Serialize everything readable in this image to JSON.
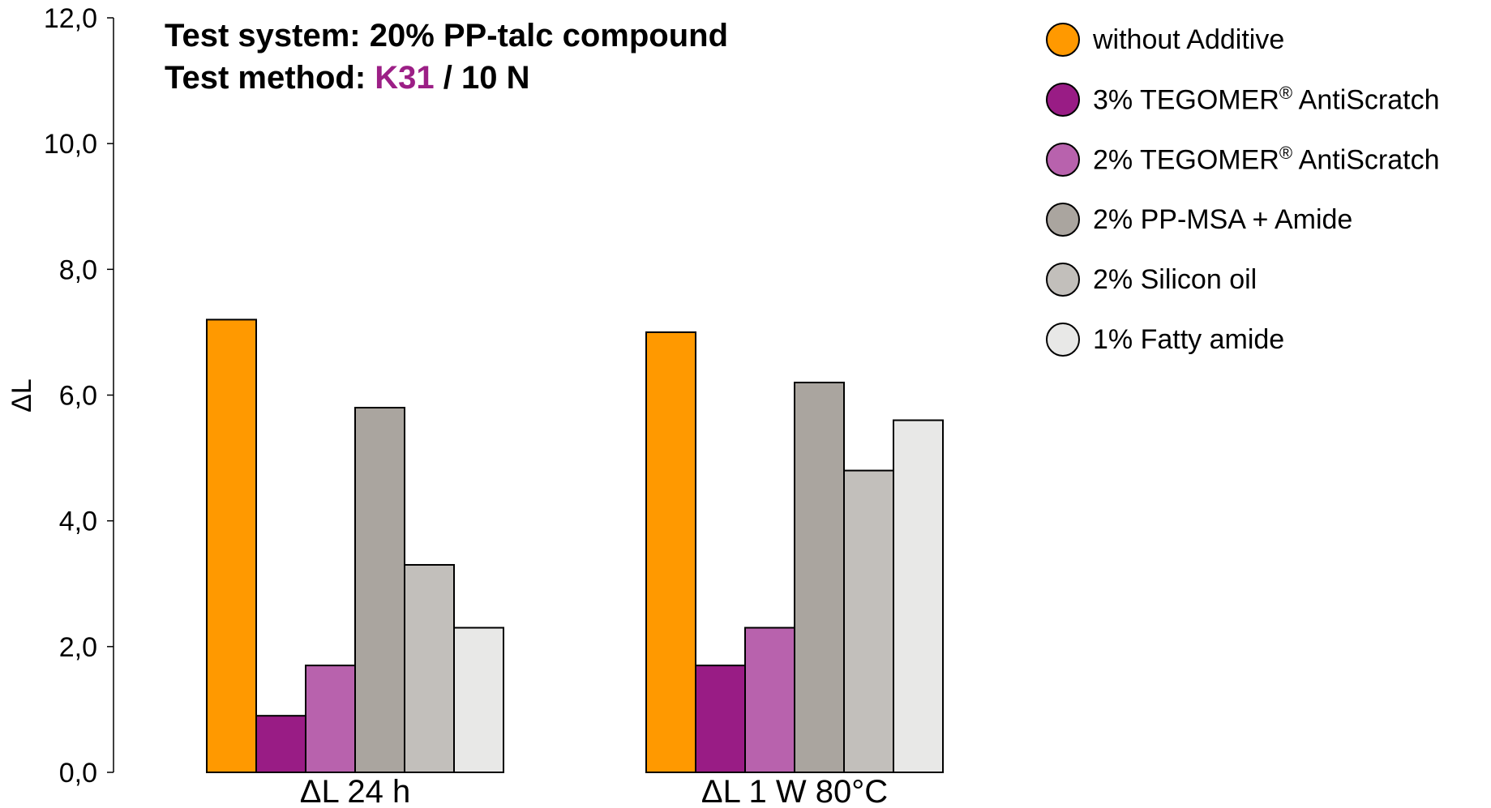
{
  "title": {
    "line1": "Test system: 20% PP-talc compound",
    "line2_prefix": "Test method: ",
    "line2_accent": "K31",
    "line2_suffix": " / 10 N"
  },
  "colors": {
    "accent": "#9c1f86",
    "axis": "#000000"
  },
  "chart_data": {
    "type": "bar",
    "title": "",
    "xlabel": "",
    "ylabel": "ΔL",
    "ylim": [
      0,
      12
    ],
    "yticks": [
      "0,0",
      "2,0",
      "4,0",
      "6,0",
      "8,0",
      "10,0",
      "12,0"
    ],
    "ytick_values": [
      0,
      2,
      4,
      6,
      8,
      10,
      12
    ],
    "categories": [
      "ΔL 24 h",
      "ΔL 1 W 80°C"
    ],
    "grid": false,
    "legend_position": "top-right",
    "series": [
      {
        "name": "without Additive",
        "color": "#ff9900",
        "values": [
          7.2,
          7.0
        ]
      },
      {
        "name": "3% TEGOMER® AntiScratch",
        "color": "#991c85",
        "values": [
          0.9,
          1.7
        ]
      },
      {
        "name": "2% TEGOMER® AntiScratch",
        "color": "#b862ad",
        "values": [
          1.7,
          2.3
        ]
      },
      {
        "name": "2% PP-MSA + Amide",
        "color": "#aaa59f",
        "values": [
          5.8,
          6.2
        ]
      },
      {
        "name": "2% Silicon oil",
        "color": "#c2bfbb",
        "values": [
          3.3,
          4.8
        ]
      },
      {
        "name": "1% Fatty amide",
        "color": "#e8e8e7",
        "values": [
          2.3,
          5.6
        ]
      }
    ]
  }
}
